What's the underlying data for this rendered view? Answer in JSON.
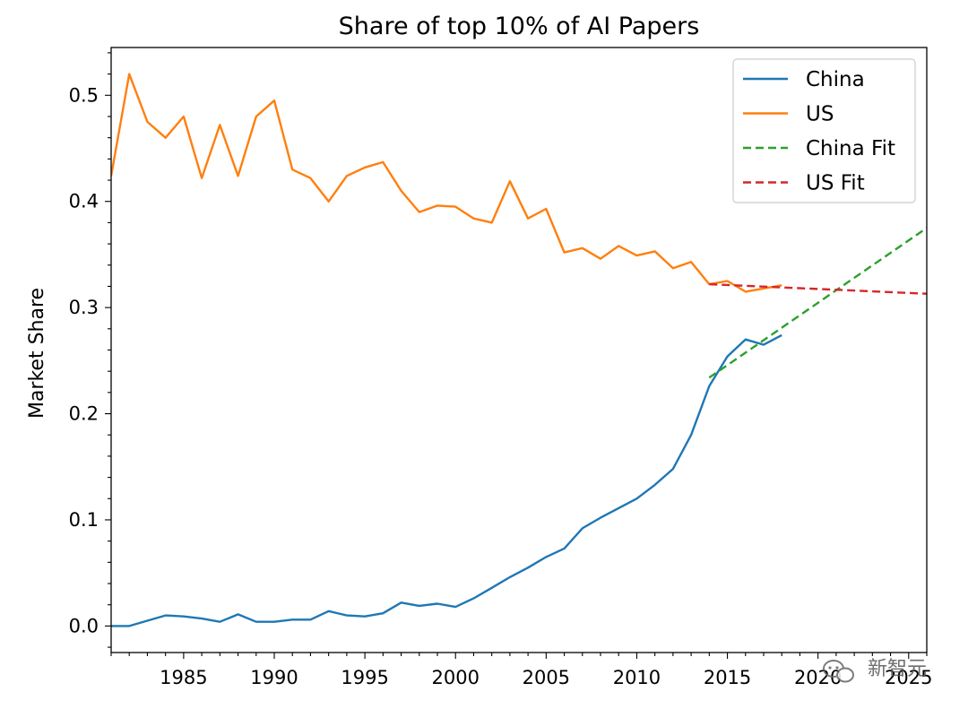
{
  "chart_data": {
    "type": "line",
    "title": "Share of top 10% of AI Papers",
    "xlabel": "",
    "ylabel": "Market Share",
    "xlim": [
      1981,
      2026
    ],
    "ylim": [
      -0.025,
      0.545
    ],
    "x_ticks": [
      1985,
      1990,
      1995,
      2000,
      2005,
      2010,
      2015,
      2020,
      2025
    ],
    "y_ticks": [
      0.0,
      0.1,
      0.2,
      0.3,
      0.4,
      0.5
    ],
    "y_tick_labels": [
      "0.0",
      "0.1",
      "0.2",
      "0.3",
      "0.4",
      "0.5"
    ],
    "grid": false,
    "legend_position": "top-right",
    "series": [
      {
        "name": "China",
        "color": "#1f77b4",
        "style": "solid",
        "x": [
          1981,
          1982,
          1983,
          1984,
          1985,
          1986,
          1987,
          1988,
          1989,
          1990,
          1991,
          1992,
          1993,
          1994,
          1995,
          1996,
          1997,
          1998,
          1999,
          2000,
          2001,
          2002,
          2003,
          2004,
          2005,
          2006,
          2007,
          2008,
          2009,
          2010,
          2011,
          2012,
          2013,
          2014,
          2015,
          2016,
          2017,
          2018
        ],
        "values": [
          0.0,
          0.0,
          0.005,
          0.01,
          0.009,
          0.007,
          0.004,
          0.011,
          0.004,
          0.004,
          0.006,
          0.006,
          0.014,
          0.01,
          0.009,
          0.012,
          0.022,
          0.019,
          0.021,
          0.018,
          0.026,
          0.036,
          0.046,
          0.055,
          0.065,
          0.073,
          0.092,
          0.102,
          0.111,
          0.12,
          0.133,
          0.148,
          0.18,
          0.226,
          0.254,
          0.27,
          0.265,
          0.274
        ]
      },
      {
        "name": "US",
        "color": "#ff7f0e",
        "style": "solid",
        "x": [
          1981,
          1982,
          1983,
          1984,
          1985,
          1986,
          1987,
          1988,
          1989,
          1990,
          1991,
          1992,
          1993,
          1994,
          1995,
          1996,
          1997,
          1998,
          1999,
          2000,
          2001,
          2002,
          2003,
          2004,
          2005,
          2006,
          2007,
          2008,
          2009,
          2010,
          2011,
          2012,
          2013,
          2014,
          2015,
          2016,
          2017,
          2018
        ],
        "values": [
          0.424,
          0.52,
          0.475,
          0.46,
          0.48,
          0.422,
          0.472,
          0.424,
          0.48,
          0.495,
          0.43,
          0.422,
          0.4,
          0.424,
          0.432,
          0.437,
          0.41,
          0.39,
          0.396,
          0.395,
          0.384,
          0.38,
          0.419,
          0.384,
          0.393,
          0.352,
          0.356,
          0.346,
          0.358,
          0.349,
          0.353,
          0.337,
          0.343,
          0.322,
          0.325,
          0.315,
          0.318,
          0.321
        ]
      },
      {
        "name": "China Fit",
        "color": "#2ca02c",
        "style": "dashed",
        "x": [
          2014,
          2026
        ],
        "values": [
          0.234,
          0.375
        ]
      },
      {
        "name": "US Fit",
        "color": "#d62728",
        "style": "dashed",
        "x": [
          2014,
          2026
        ],
        "values": [
          0.322,
          0.313
        ]
      }
    ]
  },
  "watermark": {
    "text": "新智元",
    "icon": "wechat-icon"
  }
}
